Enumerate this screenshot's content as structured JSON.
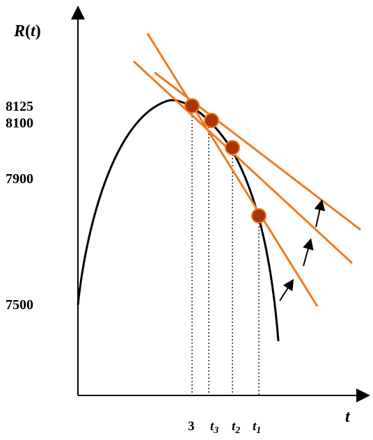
{
  "y_axis": {
    "title_main": "R",
    "title_paren_open": "(",
    "title_var": "t",
    "title_paren_close": ")"
  },
  "x_axis": {
    "title": "t"
  },
  "y_ticks": [
    "8125",
    "8100",
    "7900",
    "7500"
  ],
  "x_ticks": {
    "t_peak": "3",
    "t3_base": "t",
    "t3_sub": "3",
    "t2_base": "t",
    "t2_sub": "2",
    "t1_base": "t",
    "t1_sub": "1"
  },
  "colors": {
    "curve": "#000000",
    "tangent": "#f07a1e",
    "point_fill": "#a8350c",
    "point_stroke": "#f07a1e",
    "axis": "#000000"
  },
  "icons": [
    "arrow-up-right-icon"
  ]
}
